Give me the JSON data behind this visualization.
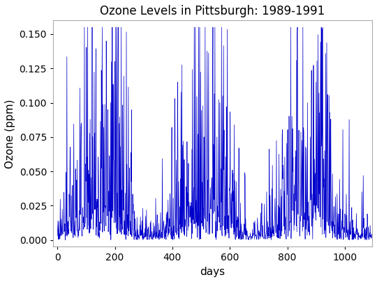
{
  "title": "Ozone Levels in Pittsburgh: 1989-1991",
  "xlabel": "days",
  "ylabel": "Ozone (ppm)",
  "line_color": "#0000CC",
  "line_width": 0.5,
  "xlim": [
    -15,
    1095
  ],
  "ylim": [
    -0.005,
    0.16
  ],
  "xticks": [
    0,
    200,
    400,
    600,
    800,
    1000
  ],
  "yticks": [
    0.0,
    0.025,
    0.05,
    0.075,
    0.1,
    0.125,
    0.15
  ],
  "background_color": "#ffffff",
  "panel_color": "#ffffff",
  "title_fontsize": 12,
  "axis_label_fontsize": 11,
  "tick_fontsize": 10,
  "n_days": 1095,
  "seed": 7
}
